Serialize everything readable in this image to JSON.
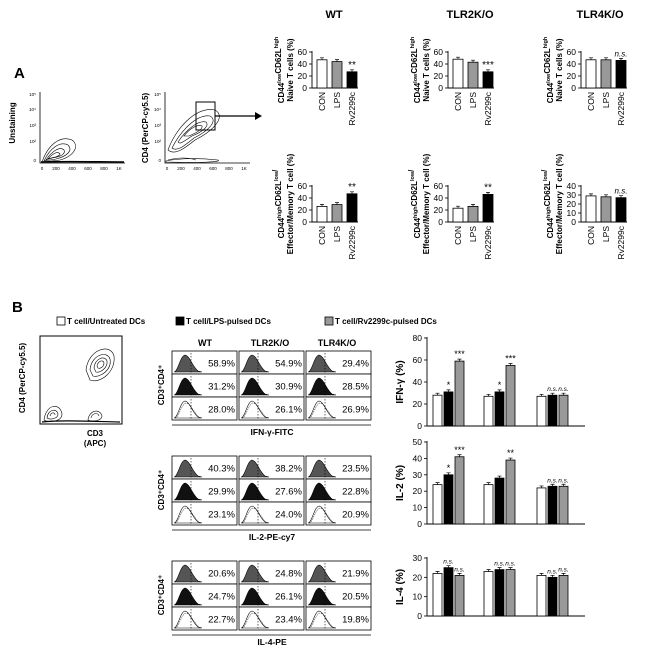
{
  "panel_labels": {
    "a": "A",
    "b": "B"
  },
  "flow_a": {
    "p1_ylabel": "Unstaining",
    "p2_ylabel": "CD4 (PerCP-cy5.5)",
    "x_ticks": [
      "0",
      "200",
      "400",
      "600",
      "800",
      "1K"
    ],
    "y_ticks": [
      "0",
      "10²",
      "10³",
      "10⁴",
      "10⁵"
    ]
  },
  "flow_b": {
    "ylabel": "CD4 (PerCP-cy5.5)",
    "xlabel": "CD3",
    "xlabel2": "(APC)"
  },
  "group_headers": [
    "WT",
    "TLR2K/O",
    "TLR4K/O"
  ],
  "legend": [
    {
      "label": "T cell/Untreated DCs",
      "color": "#ffffff"
    },
    {
      "label": "T cell/LPS-pulsed DCs",
      "color": "#000000"
    },
    {
      "label": "T cell/Rv2299c-pulsed DCs",
      "color": "#999999"
    }
  ],
  "histo": {
    "col_headers": [
      "WT",
      "TLR2K/O",
      "TLR4K/O"
    ],
    "ylabel": "CD3⁺CD4⁺",
    "blocks": [
      {
        "xlabel": "IFN-γ-FITC",
        "rows": [
          [
            "58.9%",
            "54.9%",
            "29.4%"
          ],
          [
            "31.2%",
            "30.9%",
            "28.5%"
          ],
          [
            "28.0%",
            "26.1%",
            "26.9%"
          ]
        ]
      },
      {
        "xlabel": "IL-2-PE-cy7",
        "rows": [
          [
            "40.3%",
            "38.2%",
            "23.5%"
          ],
          [
            "29.9%",
            "27.6%",
            "22.8%"
          ],
          [
            "23.1%",
            "24.0%",
            "20.9%"
          ]
        ]
      },
      {
        "xlabel": "IL-4-PE",
        "rows": [
          [
            "20.6%",
            "24.8%",
            "21.9%"
          ],
          [
            "24.7%",
            "26.1%",
            "20.5%"
          ],
          [
            "22.7%",
            "23.4%",
            "19.8%"
          ]
        ]
      }
    ]
  },
  "chart_data": [
    {
      "id": "naive-wt",
      "type": "bar",
      "categories": [
        "CON",
        "LPS",
        "Rv2299c"
      ],
      "values": [
        47,
        44,
        27
      ],
      "ylim": [
        0,
        60
      ],
      "yticks": [
        "0",
        "20",
        "40",
        "60"
      ],
      "ylabel_line1": "CD44lowCD62Lhigh",
      "ylabel_line2": "Naive T cells (%)",
      "annotations": [
        "",
        "",
        "**"
      ]
    },
    {
      "id": "naive-tlr2",
      "type": "bar",
      "categories": [
        "CON",
        "LPS",
        "Rv2299c"
      ],
      "values": [
        48,
        43,
        27
      ],
      "ylim": [
        0,
        60
      ],
      "yticks": [
        "0",
        "20",
        "40",
        "60"
      ],
      "ylabel_line1": "CD44lowCD62Lhigh",
      "ylabel_line2": "Naive T cells (%)",
      "annotations": [
        "",
        "",
        "***"
      ]
    },
    {
      "id": "naive-tlr4",
      "type": "bar",
      "categories": [
        "CON",
        "LPS",
        "Rv2299c"
      ],
      "values": [
        47,
        47,
        46
      ],
      "ylim": [
        0,
        60
      ],
      "yticks": [
        "0",
        "20",
        "40",
        "60"
      ],
      "ylabel_line1": "CD44lowCD62Lhigh",
      "ylabel_line2": "Naive T cells (%)",
      "annotations": [
        "",
        "",
        "n.s."
      ]
    },
    {
      "id": "mem-wt",
      "type": "bar",
      "categories": [
        "CON",
        "LPS",
        "Rv2299c"
      ],
      "values": [
        26,
        29,
        47
      ],
      "ylim": [
        0,
        60
      ],
      "yticks": [
        "0",
        "20",
        "40",
        "60"
      ],
      "ylabel_line1": "CD44highCD62Llow/",
      "ylabel_line2": "Effector/Memory T cell (%)",
      "annotations": [
        "",
        "",
        "**"
      ]
    },
    {
      "id": "mem-tlr2",
      "type": "bar",
      "categories": [
        "CON",
        "LPS",
        "Rv2299c"
      ],
      "values": [
        23,
        26,
        46
      ],
      "ylim": [
        0,
        60
      ],
      "yticks": [
        "0",
        "20",
        "40",
        "60"
      ],
      "ylabel_line1": "CD44highCD62Llow/",
      "ylabel_line2": "Effector/Memory T cell (%)",
      "annotations": [
        "",
        "",
        "**"
      ]
    },
    {
      "id": "mem-tlr4",
      "type": "bar",
      "categories": [
        "CON",
        "LPS",
        "Rv2299c"
      ],
      "values": [
        29,
        28,
        27
      ],
      "ylim": [
        0,
        40
      ],
      "yticks": [
        "0",
        "10",
        "20",
        "30",
        "40"
      ],
      "ylabel_line1": "CD44highCD62Llow/",
      "ylabel_line2": "Effector/Memory T cell (%)",
      "annotations": [
        "",
        "",
        "n.s."
      ]
    },
    {
      "id": "ifng",
      "type": "bar",
      "ylabel": "IFN-γ (%)",
      "ylim": [
        0,
        80
      ],
      "yticks": [
        "0",
        "20",
        "40",
        "60",
        "80"
      ],
      "groups": [
        "WT",
        "TLR2K/O",
        "TLR4K/O"
      ],
      "series": [
        {
          "name": "T cell/Untreated DCs",
          "values": [
            28,
            27,
            27
          ]
        },
        {
          "name": "T cell/LPS-pulsed DCs",
          "values": [
            31,
            31,
            28
          ]
        },
        {
          "name": "T cell/Rv2299c-pulsed DCs",
          "values": [
            59,
            55,
            28
          ]
        }
      ],
      "annotations": [
        [
          "",
          "*",
          "***"
        ],
        [
          "",
          "*",
          "***"
        ],
        [
          "",
          "n.s.",
          "n.s."
        ]
      ]
    },
    {
      "id": "il2",
      "type": "bar",
      "ylabel": "IL-2 (%)",
      "ylim": [
        0,
        50
      ],
      "yticks": [
        "0",
        "10",
        "20",
        "30",
        "40",
        "50"
      ],
      "groups": [
        "WT",
        "TLR2K/O",
        "TLR4K/O"
      ],
      "series": [
        {
          "name": "T cell/Untreated DCs",
          "values": [
            24,
            24,
            22
          ]
        },
        {
          "name": "T cell/LPS-pulsed DCs",
          "values": [
            30,
            28,
            23
          ]
        },
        {
          "name": "T cell/Rv2299c-pulsed DCs",
          "values": [
            41,
            39,
            23
          ]
        }
      ],
      "annotations": [
        [
          "",
          "*",
          "***"
        ],
        [
          "",
          "",
          "**"
        ],
        [
          "",
          "n.s.",
          "n.s."
        ]
      ]
    },
    {
      "id": "il4",
      "type": "bar",
      "ylabel": "IL-4 (%)",
      "ylim": [
        0,
        30
      ],
      "yticks": [
        "0",
        "10",
        "20",
        "30"
      ],
      "groups": [
        "WT",
        "TLR2K/O",
        "TLR4K/O"
      ],
      "series": [
        {
          "name": "T cell/Untreated DCs",
          "values": [
            22,
            23,
            21
          ]
        },
        {
          "name": "T cell/LPS-pulsed DCs",
          "values": [
            25,
            24,
            20
          ]
        },
        {
          "name": "T cell/Rv2299c-pulsed DCs",
          "values": [
            21,
            24,
            21
          ]
        }
      ],
      "annotations": [
        [
          "",
          "n.s.",
          "n.s."
        ],
        [
          "",
          "n.s.",
          "n.s."
        ],
        [
          "",
          "n.s.",
          "n.s."
        ]
      ]
    }
  ]
}
